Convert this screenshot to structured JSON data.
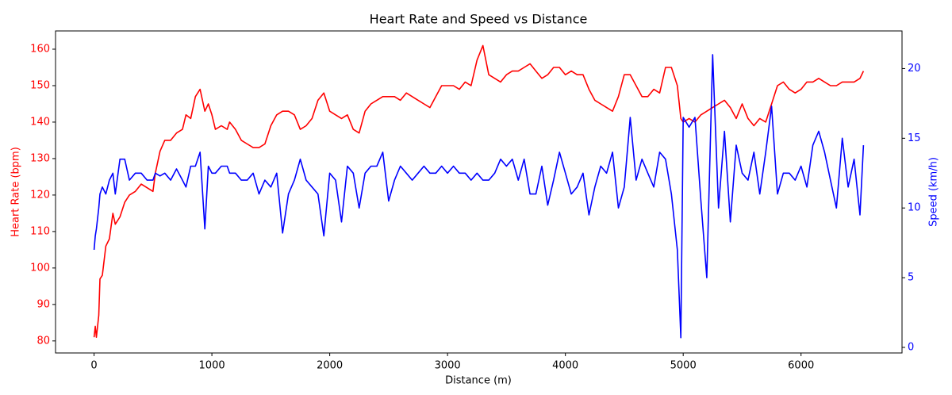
{
  "chart_data": {
    "type": "line",
    "title": "Heart Rate and Speed vs Distance",
    "xlabel": "Distance (m)",
    "ylabel": "Heart Rate (bpm)",
    "y2label": "Speed (km/h)",
    "ylabel_color": "red",
    "y2label_color": "blue",
    "x": [
      0,
      10,
      20,
      40,
      50,
      70,
      100,
      130,
      160,
      180,
      220,
      260,
      300,
      350,
      400,
      450,
      500,
      520,
      560,
      600,
      650,
      700,
      750,
      780,
      820,
      860,
      900,
      940,
      970,
      1000,
      1030,
      1080,
      1130,
      1150,
      1200,
      1250,
      1300,
      1350,
      1400,
      1450,
      1500,
      1550,
      1600,
      1650,
      1700,
      1750,
      1800,
      1850,
      1900,
      1950,
      2000,
      2050,
      2100,
      2150,
      2200,
      2250,
      2300,
      2350,
      2400,
      2450,
      2500,
      2550,
      2600,
      2650,
      2700,
      2750,
      2800,
      2850,
      2900,
      2950,
      3000,
      3050,
      3100,
      3150,
      3200,
      3250,
      3300,
      3350,
      3400,
      3450,
      3500,
      3550,
      3600,
      3650,
      3700,
      3750,
      3800,
      3850,
      3900,
      3950,
      4000,
      4050,
      4100,
      4150,
      4200,
      4250,
      4300,
      4350,
      4400,
      4450,
      4500,
      4550,
      4600,
      4650,
      4700,
      4750,
      4800,
      4850,
      4900,
      4950,
      4980,
      5000,
      5050,
      5100,
      5150,
      5200,
      5250,
      5300,
      5350,
      5400,
      5450,
      5500,
      5550,
      5600,
      5650,
      5700,
      5750,
      5800,
      5850,
      5900,
      5950,
      6000,
      6050,
      6100,
      6150,
      6200,
      6250,
      6300,
      6350,
      6400,
      6450,
      6500,
      6530
    ],
    "series": [
      {
        "color": "red",
        "axis": "y",
        "values": [
          81,
          84,
          81,
          87,
          97,
          98,
          106,
          108,
          115,
          112,
          114,
          118,
          120,
          121,
          123,
          122,
          121,
          126,
          132,
          135,
          135,
          137,
          138,
          142,
          141,
          147,
          149,
          143,
          145,
          142,
          138,
          139,
          138,
          140,
          138,
          135,
          134,
          133,
          133,
          134,
          139,
          142,
          143,
          143,
          142,
          138,
          139,
          141,
          146,
          148,
          143,
          142,
          141,
          142,
          138,
          137,
          143,
          145,
          146,
          147,
          147,
          147,
          146,
          148,
          147,
          146,
          145,
          144,
          147,
          150,
          150,
          150,
          149,
          151,
          150,
          157,
          161,
          153,
          152,
          151,
          153,
          154,
          154,
          155,
          156,
          154,
          152,
          153,
          155,
          155,
          153,
          154,
          153,
          153,
          149,
          146,
          145,
          144,
          143,
          147,
          153,
          153,
          150,
          147,
          147,
          149,
          148,
          155,
          155,
          150,
          141,
          140,
          141,
          140,
          142,
          143,
          144,
          145,
          146,
          144,
          141,
          145,
          141,
          139,
          141,
          140,
          145,
          150,
          151,
          149,
          148,
          149,
          151,
          151,
          152,
          151,
          150,
          150,
          151,
          151,
          151,
          152,
          154
        ]
      },
      {
        "color": "blue",
        "axis": "y2",
        "values": [
          7,
          8,
          8.5,
          10,
          11,
          11.5,
          11,
          12,
          12.5,
          11,
          13.5,
          13.5,
          12,
          12.5,
          12.5,
          12,
          12,
          12.5,
          12.3,
          12.5,
          12,
          12.8,
          12,
          11.5,
          13,
          13,
          14,
          8.5,
          13,
          12.5,
          12.5,
          13,
          13,
          12.5,
          12.5,
          12,
          12,
          12.5,
          11,
          12,
          11.5,
          12.5,
          8.2,
          11,
          12,
          13.5,
          12,
          11.5,
          11,
          8,
          12.5,
          12,
          9,
          13,
          12.5,
          10,
          12.5,
          13,
          13,
          14,
          10.5,
          12,
          13,
          12.5,
          12,
          12.5,
          13,
          12.5,
          12.5,
          13,
          12.5,
          13,
          12.5,
          12.5,
          12,
          12.5,
          12,
          12,
          12.5,
          13.5,
          13,
          13.5,
          12,
          13.5,
          11,
          11,
          13,
          10.2,
          12,
          14,
          12.5,
          11,
          11.5,
          12.5,
          9.5,
          11.5,
          13,
          12.5,
          14,
          10,
          11.5,
          16.5,
          12,
          13.5,
          12.5,
          11.5,
          14,
          13.5,
          11,
          7,
          0.7,
          16.5,
          15.8,
          16.5,
          10.5,
          5,
          21,
          10,
          15.5,
          9,
          14.5,
          12.5,
          12,
          14,
          11,
          14,
          17.3,
          11,
          12.5,
          12.5,
          12,
          13,
          11.5,
          14.5,
          15.5,
          14,
          12,
          10,
          15,
          11.5,
          13.5,
          9.5,
          14.5
        ]
      }
    ],
    "xlim": [
      -327,
      6857
    ],
    "xticks": [
      0,
      1000,
      2000,
      3000,
      4000,
      5000,
      6000
    ],
    "ylim": [
      76.7,
      165
    ],
    "yticks": [
      80,
      90,
      100,
      110,
      120,
      130,
      140,
      150,
      160
    ],
    "y2lim": [
      -0.4,
      22.7
    ],
    "y2ticks": [
      0,
      5,
      10,
      15,
      20
    ]
  }
}
